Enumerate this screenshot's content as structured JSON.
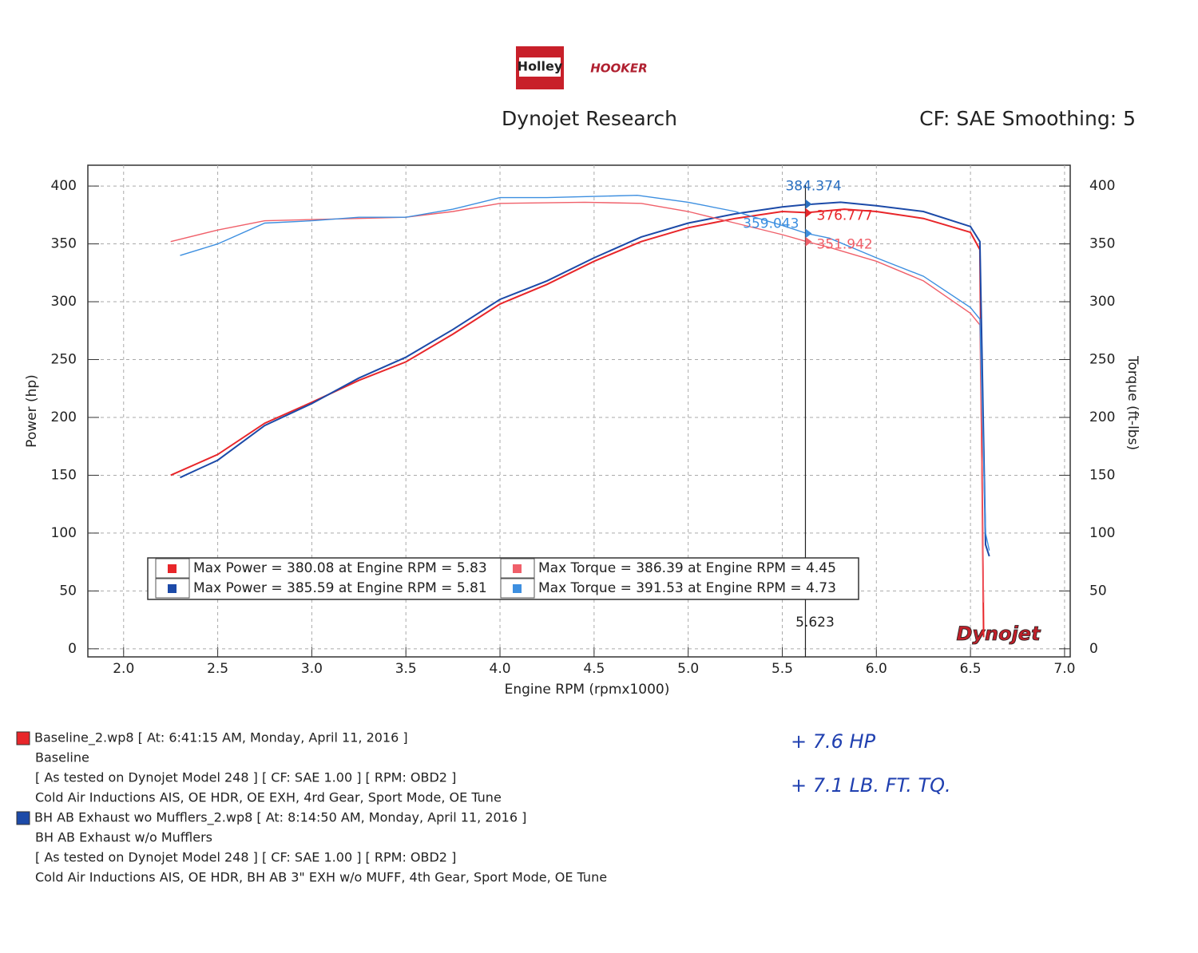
{
  "header": {
    "logo_left": "Holley",
    "logo_right": "HOOKER",
    "title": "Dynojet Research",
    "settings": "CF: SAE Smoothing: 5"
  },
  "chart_data": {
    "type": "line",
    "x_label": "Engine RPM (rpmx1000)",
    "y_label": "Power (hp)",
    "y2_label": "Torque (ft-lbs)",
    "xlim": [
      1.81,
      7.03
    ],
    "xticks": [
      {
        "value": 2,
        "label": "2.0"
      },
      2.5,
      {
        "value": 3,
        "label": "3.0"
      },
      3.5,
      {
        "value": 4,
        "label": "4.0"
      },
      4.5,
      {
        "value": 5,
        "label": "5.0"
      },
      5.5,
      {
        "value": 6,
        "label": "6.0"
      },
      6.5,
      {
        "value": 7,
        "label": "7.0"
      }
    ],
    "ylim": [
      -7,
      418
    ],
    "yticks": [
      0,
      50,
      100,
      150,
      200,
      250,
      300,
      350,
      400
    ],
    "y2lim": [
      -7,
      418
    ],
    "y2ticks": [
      0,
      50,
      100,
      150,
      200,
      250,
      300,
      350,
      400
    ],
    "grid": true,
    "series": [
      {
        "name": "Max Power = 380.08 at Engine RPM = 5.83",
        "color": "#e8262a",
        "axis": "y",
        "x": [
          2.25,
          2.5,
          2.75,
          3.0,
          3.25,
          3.5,
          3.75,
          4.0,
          4.25,
          4.5,
          4.75,
          5.0,
          5.25,
          5.5,
          5.63,
          5.83,
          6.0,
          6.25,
          6.5,
          6.55,
          6.57
        ],
        "values": [
          150,
          168,
          195,
          213,
          232,
          248,
          272,
          298,
          315,
          335,
          352,
          364,
          372,
          378,
          377,
          380,
          378,
          372,
          360,
          345,
          10
        ]
      },
      {
        "name": "Max Power = 385.59 at Engine RPM = 5.81",
        "color": "#1c4aa8",
        "axis": "y",
        "x": [
          2.3,
          2.5,
          2.75,
          3.0,
          3.25,
          3.5,
          3.75,
          4.0,
          4.25,
          4.5,
          4.75,
          5.0,
          5.25,
          5.5,
          5.63,
          5.81,
          6.0,
          6.25,
          6.5,
          6.55,
          6.58,
          6.6
        ],
        "values": [
          148,
          163,
          193,
          212,
          234,
          252,
          276,
          302,
          318,
          338,
          356,
          368,
          376,
          382,
          384,
          386,
          383,
          378,
          365,
          352,
          90,
          80
        ]
      },
      {
        "name": "Max Torque = 386.39 at Engine RPM = 4.45",
        "color": "#f0606a",
        "axis": "y2",
        "x": [
          2.25,
          2.5,
          2.75,
          3.0,
          3.25,
          3.5,
          3.75,
          4.0,
          4.45,
          4.75,
          5.0,
          5.25,
          5.5,
          5.63,
          5.75,
          6.0,
          6.25,
          6.5,
          6.55,
          6.57
        ],
        "values": [
          352,
          362,
          370,
          371,
          372,
          373,
          378,
          385,
          386,
          385,
          378,
          368,
          358,
          352,
          347,
          335,
          318,
          290,
          280,
          40
        ]
      },
      {
        "name": "Max Torque = 391.53 at Engine RPM = 4.73",
        "color": "#3d8fe0",
        "axis": "y2",
        "x": [
          2.3,
          2.5,
          2.75,
          3.0,
          3.25,
          3.5,
          3.75,
          4.0,
          4.25,
          4.5,
          4.73,
          5.0,
          5.25,
          5.5,
          5.63,
          5.75,
          6.0,
          6.25,
          6.5,
          6.55,
          6.58,
          6.6
        ],
        "values": [
          340,
          350,
          368,
          370,
          373,
          373,
          380,
          390,
          390,
          391,
          392,
          386,
          378,
          366,
          359,
          355,
          338,
          322,
          295,
          285,
          100,
          85
        ]
      }
    ],
    "cursor": 5.623,
    "cursor_readouts": [
      {
        "value": 384.374,
        "color": "#2a6fc0"
      },
      {
        "value": 376.777,
        "color": "#e8262a"
      },
      {
        "value": 359.043,
        "color": "#3d8fe0"
      },
      {
        "value": 351.942,
        "color": "#f0606a"
      }
    ],
    "watermark": "Dynojet"
  },
  "runs": [
    {
      "color": "#e8262a",
      "lines": [
        "Baseline_2.wp8 [ At: 6:41:15 AM, Monday, April 11, 2016 ]",
        "Baseline",
        "[ As tested on Dynojet Model 248 ]  [ CF: SAE 1.00 ]  [ RPM: OBD2 ]",
        "Cold Air Inductions AIS, OE HDR, OE EXH, 4rd Gear, Sport Mode, OE Tune"
      ]
    },
    {
      "color": "#1c4aa8",
      "lines": [
        "BH AB Exhaust wo Mufflers_2.wp8 [ At: 8:14:50 AM, Monday, April 11, 2016 ]",
        "BH AB Exhaust w/o Mufflers",
        "[ As tested on Dynojet Model 248 ]  [ CF: SAE 1.00 ]  [ RPM: OBD2 ]",
        "Cold Air Inductions AIS, OE HDR, BH AB 3\" EXH w/o MUFF, 4th Gear, Sport Mode, OE Tune"
      ]
    }
  ],
  "notes": [
    "+ 7.6 HP",
    "+ 7.1 LB. FT. TQ."
  ]
}
